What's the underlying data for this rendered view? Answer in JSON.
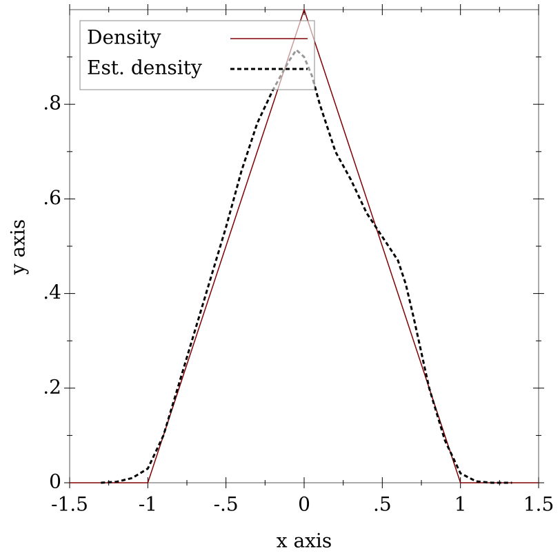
{
  "chart_data": {
    "type": "line",
    "xlabel": "x axis",
    "ylabel": "y axis",
    "xlim": [
      -1.5,
      1.5
    ],
    "ylim": [
      0,
      1
    ],
    "xticks": [
      {
        "value": -1.5,
        "label": "-1.5"
      },
      -1,
      {
        "value": -0.5,
        "label": "-.5"
      },
      0,
      {
        "value": 0.5,
        "label": ".5"
      },
      1,
      1.5
    ],
    "yticks": [
      0,
      {
        "value": 0.2,
        "label": ".2"
      },
      {
        "value": 0.4,
        "label": ".4"
      },
      {
        "value": 0.6,
        "label": ".6"
      },
      {
        "value": 0.8,
        "label": ".8"
      }
    ],
    "xminorticks": [
      -1.25,
      -0.75,
      -0.25,
      0.25,
      0.75,
      1.25
    ],
    "yminorticks": [
      0.1,
      0.3,
      0.5,
      0.7,
      0.9
    ],
    "legend": "upper-left",
    "series": [
      {
        "name": "Density",
        "color": "#800000",
        "dash": false,
        "x": [
          -1.5,
          -1,
          0,
          1,
          1.5
        ],
        "values": [
          0,
          0,
          1,
          0,
          0
        ]
      },
      {
        "name": "Est. density",
        "color": "#000000",
        "dash": true,
        "x": [
          -1.3,
          -1.2,
          -1.1,
          -1.0,
          -0.9,
          -0.8,
          -0.7,
          -0.6,
          -0.5,
          -0.4,
          -0.3,
          -0.2,
          -0.1,
          -0.05,
          0,
          0.05,
          0.1,
          0.2,
          0.3,
          0.4,
          0.5,
          0.6,
          0.65,
          0.7,
          0.8,
          0.9,
          1.0,
          1.1,
          1.2,
          1.33
        ],
        "values": [
          0,
          0.002,
          0.01,
          0.03,
          0.1,
          0.21,
          0.32,
          0.43,
          0.54,
          0.66,
          0.76,
          0.83,
          0.89,
          0.915,
          0.9,
          0.86,
          0.8,
          0.7,
          0.64,
          0.57,
          0.52,
          0.47,
          0.42,
          0.35,
          0.2,
          0.09,
          0.02,
          0.003,
          0,
          0
        ]
      }
    ]
  }
}
